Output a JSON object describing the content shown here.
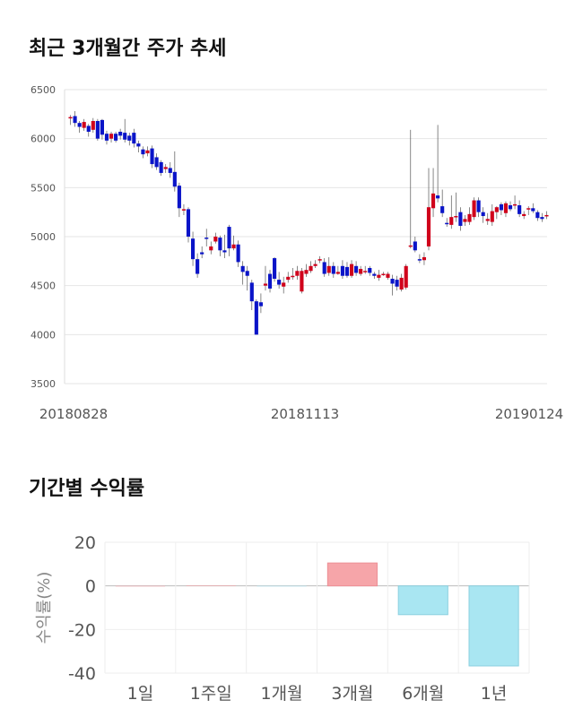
{
  "sections": {
    "price_title": "최근 3개월간 주가 추세",
    "returns_title": "기간별 수익률"
  },
  "colors": {
    "up": "#d0011b",
    "down": "#0a14c8",
    "wick": "#555555",
    "positive_bar": "#f6a5a9",
    "negative_bar": "#a9e6f2"
  },
  "chart_data": [
    {
      "type": "candlestick",
      "title": "최근 3개월간 주가 추세",
      "ylim": [
        3500,
        6500
      ],
      "y_ticks": [
        6500,
        6000,
        5500,
        5000,
        4500,
        4000,
        3500
      ],
      "x_ticks": [
        "20180828",
        "20181113",
        "20190124"
      ],
      "grid": true,
      "candles": [
        [
          6210,
          6220,
          6240,
          6140
        ],
        [
          6230,
          6160,
          6280,
          6120
        ],
        [
          6160,
          6120,
          6180,
          6060
        ],
        [
          6110,
          6170,
          6200,
          6080
        ],
        [
          6130,
          6070,
          6150,
          6020
        ],
        [
          6090,
          6180,
          6210,
          6060
        ],
        [
          6180,
          6000,
          6200,
          5980
        ],
        [
          6190,
          6040,
          6200,
          5990
        ],
        [
          6050,
          5980,
          6080,
          5940
        ],
        [
          6000,
          6050,
          6070,
          5960
        ],
        [
          6050,
          5980,
          6070,
          5960
        ],
        [
          6070,
          6030,
          6100,
          5990
        ],
        [
          6060,
          5990,
          6200,
          5960
        ],
        [
          6030,
          5980,
          6060,
          5930
        ],
        [
          6060,
          5950,
          6100,
          5910
        ],
        [
          5950,
          5920,
          5980,
          5860
        ],
        [
          5890,
          5840,
          5920,
          5800
        ],
        [
          5850,
          5880,
          5920,
          5820
        ],
        [
          5900,
          5740,
          5930,
          5700
        ],
        [
          5810,
          5710,
          5850,
          5680
        ],
        [
          5760,
          5650,
          5780,
          5620
        ],
        [
          5690,
          5710,
          5740,
          5650
        ],
        [
          5700,
          5650,
          5760,
          5600
        ],
        [
          5660,
          5510,
          5870,
          5460
        ],
        [
          5520,
          5290,
          5550,
          5200
        ],
        [
          5270,
          5280,
          5330,
          5220
        ],
        [
          5280,
          5000,
          5300,
          4940
        ],
        [
          4980,
          4770,
          5050,
          4700
        ],
        [
          4770,
          4620,
          4830,
          4580
        ],
        [
          4840,
          4820,
          4900,
          4780
        ],
        [
          4990,
          4980,
          5080,
          4900
        ],
        [
          4860,
          4900,
          4950,
          4820
        ],
        [
          4950,
          5000,
          5040,
          4930
        ],
        [
          4990,
          4860,
          5010,
          4800
        ],
        [
          4860,
          4840,
          5020,
          4780
        ],
        [
          5100,
          4880,
          5120,
          4800
        ],
        [
          4880,
          4920,
          5010,
          4860
        ],
        [
          4920,
          4740,
          4960,
          4690
        ],
        [
          4700,
          4640,
          4750,
          4510
        ],
        [
          4650,
          4600,
          4700,
          4450
        ],
        [
          4530,
          4340,
          4560,
          4250
        ],
        [
          4340,
          4000,
          4360,
          4000
        ],
        [
          4330,
          4290,
          4420,
          4220
        ],
        [
          4500,
          4520,
          4700,
          4450
        ],
        [
          4620,
          4470,
          4660,
          4430
        ],
        [
          4780,
          4570,
          4790,
          4540
        ],
        [
          4560,
          4510,
          4640,
          4470
        ],
        [
          4490,
          4530,
          4590,
          4420
        ],
        [
          4560,
          4590,
          4640,
          4530
        ],
        [
          4590,
          4600,
          4680,
          4560
        ],
        [
          4600,
          4650,
          4700,
          4560
        ],
        [
          4440,
          4650,
          4680,
          4420
        ],
        [
          4620,
          4660,
          4720,
          4590
        ],
        [
          4650,
          4700,
          4750,
          4630
        ],
        [
          4700,
          4720,
          4760,
          4680
        ],
        [
          4760,
          4770,
          4800,
          4730
        ],
        [
          4740,
          4620,
          4780,
          4590
        ],
        [
          4630,
          4700,
          4790,
          4600
        ],
        [
          4700,
          4620,
          4740,
          4580
        ],
        [
          4620,
          4640,
          4700,
          4610
        ],
        [
          4700,
          4600,
          4760,
          4570
        ],
        [
          4690,
          4600,
          4740,
          4580
        ],
        [
          4600,
          4720,
          4760,
          4580
        ],
        [
          4700,
          4630,
          4750,
          4600
        ],
        [
          4620,
          4670,
          4700,
          4600
        ],
        [
          4640,
          4650,
          4700,
          4620
        ],
        [
          4680,
          4630,
          4700,
          4600
        ],
        [
          4620,
          4600,
          4640,
          4570
        ],
        [
          4580,
          4610,
          4660,
          4550
        ],
        [
          4620,
          4620,
          4640,
          4600
        ],
        [
          4580,
          4620,
          4640,
          4560
        ],
        [
          4570,
          4520,
          4610,
          4400
        ],
        [
          4560,
          4490,
          4600,
          4450
        ],
        [
          4460,
          4580,
          4620,
          4440
        ],
        [
          4480,
          4700,
          4720,
          4460
        ],
        [
          4910,
          4910,
          6090,
          4880
        ],
        [
          4950,
          4860,
          5000,
          4840
        ],
        [
          4770,
          4760,
          4820,
          4730
        ],
        [
          4760,
          4790,
          4840,
          4710
        ],
        [
          4900,
          5300,
          5700,
          4860
        ],
        [
          5290,
          5440,
          5700,
          5200
        ],
        [
          5420,
          5390,
          6140,
          5350
        ],
        [
          5310,
          5240,
          5480,
          5200
        ],
        [
          5140,
          5130,
          5190,
          5100
        ],
        [
          5120,
          5200,
          5420,
          5080
        ],
        [
          5200,
          5210,
          5450,
          5150
        ],
        [
          5250,
          5110,
          5300,
          5060
        ],
        [
          5150,
          5180,
          5220,
          5110
        ],
        [
          5150,
          5230,
          5300,
          5120
        ],
        [
          5200,
          5370,
          5400,
          5170
        ],
        [
          5370,
          5250,
          5400,
          5200
        ],
        [
          5250,
          5210,
          5300,
          5140
        ],
        [
          5160,
          5180,
          5240,
          5120
        ],
        [
          5150,
          5260,
          5330,
          5110
        ],
        [
          5250,
          5300,
          5310,
          5180
        ],
        [
          5330,
          5270,
          5350,
          5220
        ],
        [
          5240,
          5340,
          5360,
          5200
        ],
        [
          5320,
          5280,
          5360,
          5260
        ],
        [
          5320,
          5330,
          5420,
          5280
        ],
        [
          5320,
          5230,
          5370,
          5200
        ],
        [
          5210,
          5230,
          5260,
          5180
        ],
        [
          5280,
          5290,
          5310,
          5220
        ],
        [
          5290,
          5260,
          5340,
          5240
        ],
        [
          5250,
          5190,
          5270,
          5160
        ],
        [
          5200,
          5180,
          5240,
          5150
        ],
        [
          5210,
          5220,
          5260,
          5180
        ]
      ]
    },
    {
      "type": "bar",
      "categories": [
        "1일",
        "1주일",
        "1개월",
        "3개월",
        "6개월",
        "1년"
      ],
      "values": [
        0.0,
        0.2,
        -0.2,
        10.5,
        -13.2,
        -36.7
      ],
      "ylabel": "수익률(%)",
      "y_ticks": [
        20,
        0,
        -20,
        -40
      ],
      "ylim": [
        -40,
        20
      ],
      "grid": true
    }
  ]
}
